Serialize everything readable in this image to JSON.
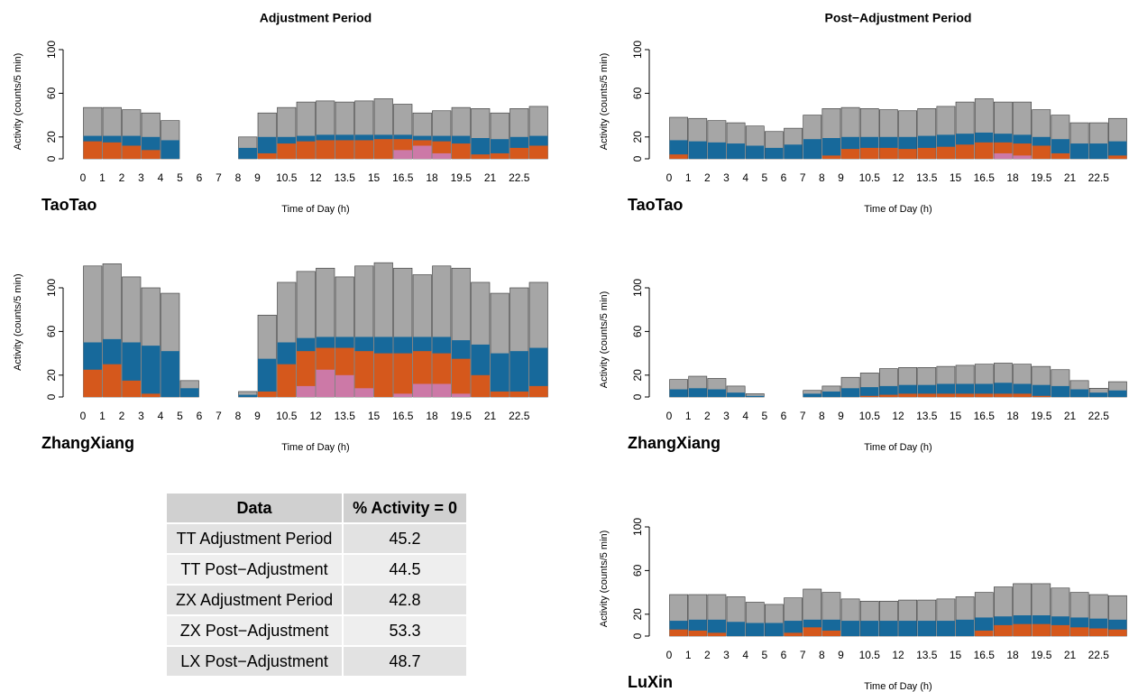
{
  "chart_data": [
    {
      "type": "bar",
      "title": "Adjustment Period",
      "name_label": "TaoTao",
      "x_label": "Time of Day (h)",
      "y_label": "Activity (counts/5 min)",
      "x": [
        0,
        1,
        2,
        3,
        4,
        5,
        6,
        7,
        8,
        9,
        10,
        11,
        12,
        13,
        14,
        15,
        16,
        17,
        18,
        19,
        20,
        21,
        22,
        23
      ],
      "xlim": [
        0,
        24
      ],
      "xticks": [
        0,
        1,
        2,
        3,
        4,
        5,
        6,
        7,
        8,
        9,
        10.5,
        12,
        13.5,
        15,
        16.5,
        18,
        19.5,
        21,
        22.5
      ],
      "ylim": [
        0,
        105
      ],
      "yticks": [
        0,
        20,
        60,
        100
      ],
      "series": [
        {
          "color": "#a6a6a6",
          "values": [
            47,
            47,
            45,
            42,
            35,
            0,
            0,
            0,
            20,
            42,
            47,
            52,
            53,
            52,
            53,
            55,
            50,
            42,
            44,
            47,
            46,
            42,
            46,
            48
          ]
        },
        {
          "color": "#17699b",
          "values": [
            21,
            21,
            21,
            20,
            17,
            0,
            0,
            0,
            10,
            20,
            20,
            21,
            22,
            22,
            22,
            22,
            22,
            21,
            21,
            21,
            19,
            18,
            20,
            21
          ]
        },
        {
          "color": "#d5581c",
          "values": [
            16,
            15,
            12,
            8,
            0,
            0,
            0,
            0,
            0,
            5,
            14,
            16,
            17,
            17,
            17,
            18,
            18,
            17,
            16,
            14,
            4,
            5,
            10,
            12
          ]
        },
        {
          "color": "#cc79a7",
          "values": [
            0,
            0,
            0,
            0,
            0,
            0,
            0,
            0,
            0,
            0,
            0,
            0,
            0,
            0,
            0,
            0,
            8,
            12,
            5,
            0,
            0,
            0,
            0,
            0
          ]
        }
      ]
    },
    {
      "type": "bar",
      "name_label": "ZhangXiang",
      "x_label": "Time of Day (h)",
      "y_label": "Activity (counts/5 min)",
      "x": [
        0,
        1,
        2,
        3,
        4,
        5,
        6,
        7,
        8,
        9,
        10,
        11,
        12,
        13,
        14,
        15,
        16,
        17,
        18,
        19,
        20,
        21,
        22,
        23
      ],
      "xlim": [
        0,
        24
      ],
      "xticks": [
        0,
        1,
        2,
        3,
        4,
        5,
        6,
        7,
        8,
        9,
        10.5,
        12,
        13.5,
        15,
        16.5,
        18,
        19.5,
        21,
        22.5
      ],
      "ylim": [
        0,
        137
      ],
      "yticks": [
        0,
        20,
        60,
        100
      ],
      "series": [
        {
          "color": "#a6a6a6",
          "values": [
            120,
            122,
            110,
            100,
            95,
            15,
            0,
            0,
            5,
            75,
            105,
            115,
            118,
            110,
            120,
            123,
            118,
            112,
            120,
            118,
            105,
            95,
            100,
            105
          ]
        },
        {
          "color": "#17699b",
          "values": [
            50,
            53,
            50,
            47,
            42,
            8,
            0,
            0,
            2,
            35,
            50,
            54,
            55,
            55,
            55,
            55,
            55,
            55,
            55,
            52,
            48,
            40,
            42,
            45
          ]
        },
        {
          "color": "#d5581c",
          "values": [
            25,
            30,
            15,
            3,
            0,
            0,
            0,
            0,
            0,
            5,
            30,
            42,
            45,
            45,
            42,
            40,
            40,
            42,
            40,
            35,
            20,
            5,
            5,
            10
          ]
        },
        {
          "color": "#cc79a7",
          "values": [
            0,
            0,
            0,
            0,
            0,
            0,
            0,
            0,
            0,
            0,
            0,
            10,
            25,
            20,
            8,
            0,
            3,
            12,
            12,
            3,
            0,
            0,
            0,
            0
          ]
        }
      ]
    },
    {
      "type": "bar",
      "title": "Post−Adjustment Period",
      "name_label": "TaoTao",
      "x_label": "Time of Day (h)",
      "y_label": "Activity (counts/5 min)",
      "x": [
        0,
        1,
        2,
        3,
        4,
        5,
        6,
        7,
        8,
        9,
        10,
        11,
        12,
        13,
        14,
        15,
        16,
        17,
        18,
        19,
        20,
        21,
        22,
        23
      ],
      "xlim": [
        0,
        24
      ],
      "xticks": [
        0,
        1,
        2,
        3,
        4,
        5,
        6,
        7,
        8,
        9,
        10.5,
        12,
        13.5,
        15,
        16.5,
        18,
        19.5,
        21,
        22.5
      ],
      "ylim": [
        0,
        105
      ],
      "yticks": [
        0,
        20,
        60,
        100
      ],
      "series": [
        {
          "color": "#a6a6a6",
          "values": [
            38,
            37,
            35,
            33,
            30,
            25,
            28,
            40,
            46,
            47,
            46,
            45,
            44,
            46,
            48,
            52,
            55,
            52,
            52,
            45,
            40,
            33,
            33,
            37
          ]
        },
        {
          "color": "#17699b",
          "values": [
            17,
            16,
            15,
            14,
            12,
            10,
            13,
            18,
            19,
            20,
            20,
            20,
            20,
            21,
            22,
            23,
            24,
            23,
            22,
            20,
            18,
            14,
            14,
            16
          ]
        },
        {
          "color": "#d5581c",
          "values": [
            4,
            0,
            0,
            0,
            0,
            0,
            0,
            0,
            3,
            9,
            10,
            10,
            9,
            10,
            11,
            13,
            15,
            15,
            14,
            12,
            5,
            0,
            0,
            3
          ]
        },
        {
          "color": "#cc79a7",
          "values": [
            0,
            0,
            0,
            0,
            0,
            0,
            0,
            0,
            0,
            0,
            0,
            0,
            0,
            0,
            0,
            0,
            0,
            5,
            3,
            0,
            0,
            0,
            0,
            0
          ]
        }
      ]
    },
    {
      "type": "bar",
      "name_label": "ZhangXiang",
      "x_label": "Time of Day (h)",
      "y_label": "Activity (counts/5 min)",
      "x": [
        0,
        1,
        2,
        3,
        4,
        5,
        6,
        7,
        8,
        9,
        10,
        11,
        12,
        13,
        14,
        15,
        16,
        17,
        18,
        19,
        20,
        21,
        22,
        23
      ],
      "xlim": [
        0,
        24
      ],
      "xticks": [
        0,
        1,
        2,
        3,
        4,
        5,
        6,
        7,
        8,
        9,
        10.5,
        12,
        13.5,
        15,
        16.5,
        18,
        19.5,
        21,
        22.5
      ],
      "ylim": [
        0,
        105
      ],
      "yticks": [
        0,
        20,
        60,
        100
      ],
      "series": [
        {
          "color": "#a6a6a6",
          "values": [
            16,
            19,
            17,
            10,
            3,
            0,
            0,
            6,
            10,
            18,
            22,
            26,
            27,
            27,
            28,
            29,
            30,
            31,
            30,
            28,
            25,
            15,
            8,
            14
          ]
        },
        {
          "color": "#17699b",
          "values": [
            7,
            8,
            7,
            4,
            1,
            0,
            0,
            3,
            5,
            8,
            9,
            10,
            11,
            11,
            12,
            12,
            12,
            13,
            12,
            11,
            10,
            7,
            4,
            6
          ]
        },
        {
          "color": "#d5581c",
          "values": [
            0,
            0,
            0,
            0,
            0,
            0,
            0,
            0,
            0,
            0,
            1,
            2,
            3,
            3,
            3,
            3,
            3,
            3,
            3,
            1,
            0,
            0,
            0,
            0
          ]
        }
      ]
    },
    {
      "type": "bar",
      "name_label": "LuXin",
      "x_label": "Time of Day (h)",
      "y_label": "Activity (counts/5 min)",
      "x": [
        0,
        1,
        2,
        3,
        4,
        5,
        6,
        7,
        8,
        9,
        10,
        11,
        12,
        13,
        14,
        15,
        16,
        17,
        18,
        19,
        20,
        21,
        22,
        23
      ],
      "xlim": [
        0,
        24
      ],
      "xticks": [
        0,
        1,
        2,
        3,
        4,
        5,
        6,
        7,
        8,
        9,
        10.5,
        12,
        13.5,
        15,
        16.5,
        18,
        19.5,
        21,
        22.5
      ],
      "ylim": [
        0,
        105
      ],
      "yticks": [
        0,
        20,
        60,
        100
      ],
      "series": [
        {
          "color": "#a6a6a6",
          "values": [
            38,
            38,
            38,
            36,
            31,
            29,
            35,
            43,
            40,
            34,
            32,
            32,
            33,
            33,
            34,
            36,
            40,
            45,
            48,
            48,
            44,
            40,
            38,
            37
          ]
        },
        {
          "color": "#17699b",
          "values": [
            14,
            15,
            15,
            13,
            12,
            12,
            14,
            15,
            15,
            14,
            14,
            14,
            14,
            14,
            14,
            15,
            17,
            18,
            19,
            19,
            18,
            17,
            16,
            15
          ]
        },
        {
          "color": "#d5581c",
          "values": [
            6,
            5,
            3,
            0,
            0,
            0,
            3,
            8,
            5,
            0,
            0,
            0,
            0,
            0,
            0,
            0,
            5,
            10,
            11,
            11,
            10,
            8,
            7,
            6
          ]
        }
      ]
    }
  ],
  "table": {
    "header": [
      "Data",
      "% Activity = 0"
    ],
    "rows": [
      [
        "TT Adjustment Period",
        "45.2"
      ],
      [
        "TT Post−Adjustment",
        "44.5"
      ],
      [
        "ZX Adjustment Period",
        "42.8"
      ],
      [
        "ZX Post−Adjustment",
        "53.3"
      ],
      [
        "LX Post−Adjustment",
        "48.7"
      ]
    ]
  }
}
